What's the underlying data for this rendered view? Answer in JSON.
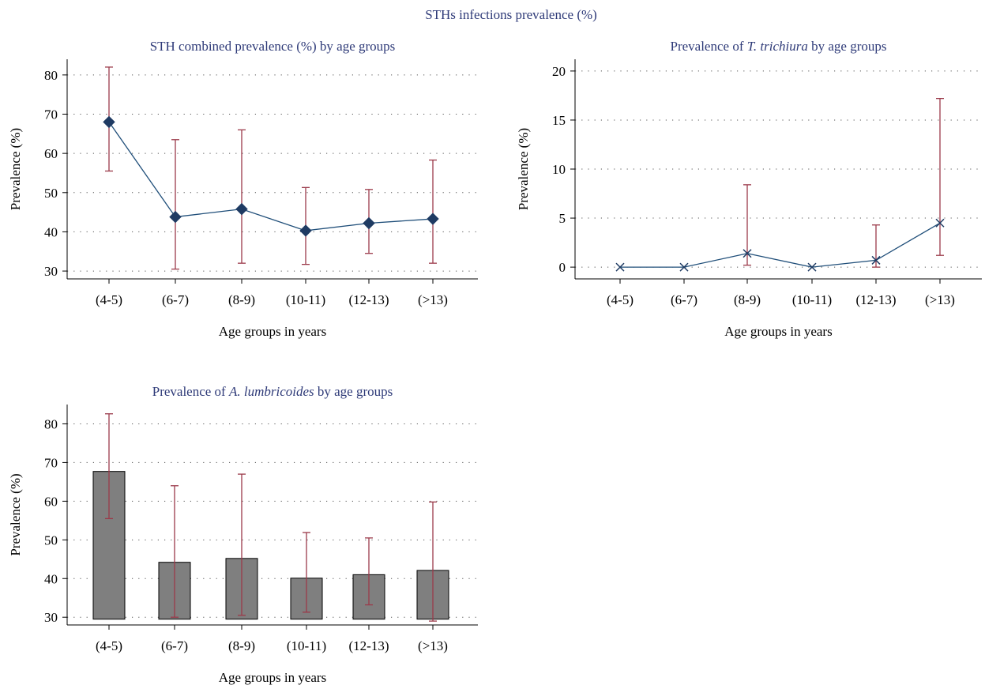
{
  "figure_title": "STHs infections prevalence (%)",
  "colors": {
    "title": "#2e3a78",
    "axis": "#000000",
    "line": "#1f4e79",
    "marker": "#1f3b63",
    "error_bar": "#9b3a4a",
    "bar_fill": "#7f7f7f",
    "bar_stroke": "#000000",
    "grid": "#555555"
  },
  "chart_data": [
    {
      "id": "combined",
      "type": "line",
      "marker": "diamond",
      "title": "STH combined prevalence (%) by age groups",
      "xlabel": "Age groups in years",
      "ylabel": "Prevalence (%)",
      "ylim": [
        28,
        84
      ],
      "yticks": [
        30,
        40,
        50,
        60,
        70,
        80
      ],
      "grid": true,
      "categories": [
        "(4-5)",
        "(6-7)",
        "(8-9)",
        "(10-11)",
        "(12-13)",
        "(>13)"
      ],
      "values": [
        68,
        43.8,
        45.8,
        40.3,
        42.2,
        43.3
      ],
      "ci_low": [
        55.5,
        30.5,
        32,
        31.7,
        34.5,
        32
      ],
      "ci_high": [
        82,
        63.5,
        66,
        51.3,
        50.8,
        58.3
      ]
    },
    {
      "id": "trichiura",
      "type": "line",
      "marker": "x",
      "title": "Prevalence of T. trichiura by age groups",
      "title_parts": [
        "Prevalence of ",
        "T. trichiura",
        " by age groups"
      ],
      "xlabel": "Age groups in years",
      "ylabel": "Prevalence (%)",
      "ylim": [
        -1.2,
        21.2
      ],
      "yticks": [
        0,
        5,
        10,
        15,
        20
      ],
      "grid": true,
      "categories": [
        "(4-5)",
        "(6-7)",
        "(8-9)",
        "(10-11)",
        "(12-13)",
        "(>13)"
      ],
      "values": [
        0,
        0,
        1.4,
        0,
        0.7,
        4.5
      ],
      "ci_low": [
        null,
        null,
        0.2,
        null,
        0,
        1.2
      ],
      "ci_high": [
        null,
        null,
        8.4,
        null,
        4.3,
        17.2
      ]
    },
    {
      "id": "lumbricoides",
      "type": "bar",
      "title": "Prevalence of A. lumbricoides by age groups",
      "title_parts": [
        "Prevalence of ",
        "A. lumbricoides",
        " by age groups"
      ],
      "xlabel": "Age groups in years",
      "ylabel": "Prevalence (%)",
      "ylim": [
        28,
        85
      ],
      "yticks": [
        30,
        40,
        50,
        60,
        70,
        80
      ],
      "bar_base": 29.5,
      "grid": true,
      "categories": [
        "(4-5)",
        "(6-7)",
        "(8-9)",
        "(10-11)",
        "(12-13)",
        "(>13)"
      ],
      "values": [
        67.7,
        44.2,
        45.2,
        40.1,
        41.0,
        42.1
      ],
      "ci_low": [
        55.5,
        30,
        30.5,
        31.3,
        33.2,
        29.0
      ],
      "ci_high": [
        82.6,
        64,
        67,
        51.9,
        50.5,
        59.8
      ]
    }
  ]
}
